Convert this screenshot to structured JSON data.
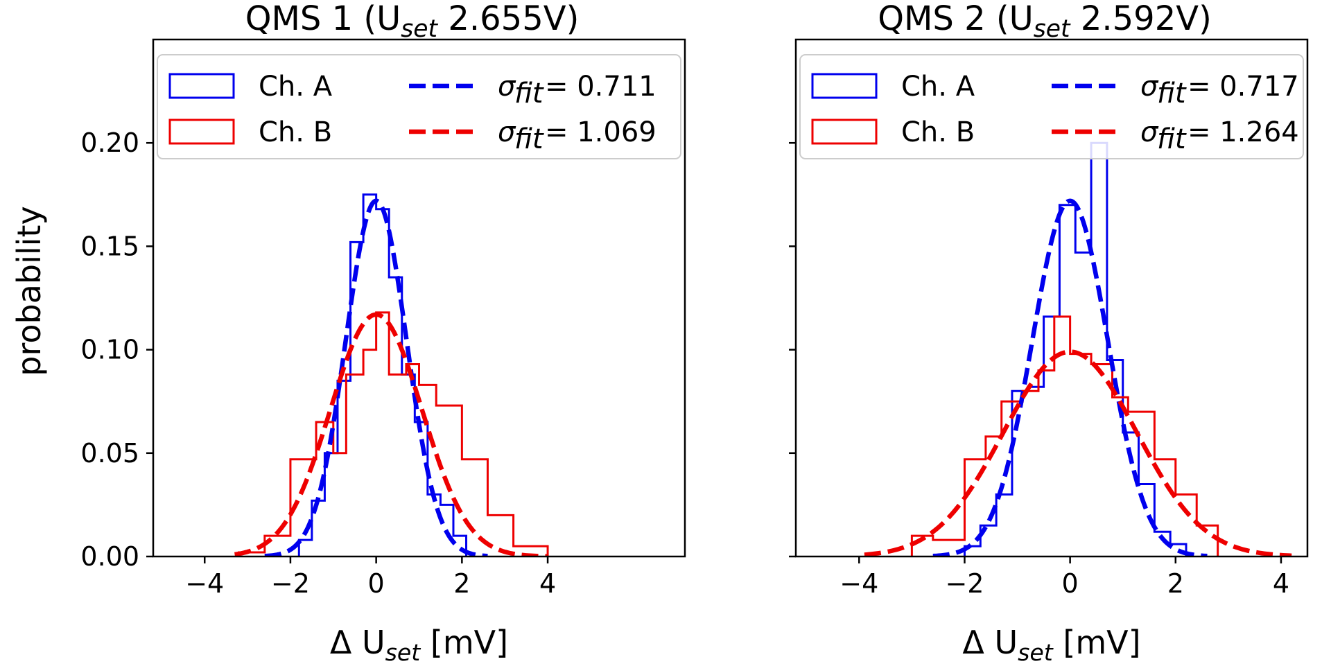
{
  "chart_data": [
    {
      "type": "histogram",
      "title": {
        "main": "QMS 1 (U",
        "sub": "set",
        "rest": " 2.655V)"
      },
      "xlabel": {
        "main": "Δ U",
        "sub": "set",
        "rest": " [mV]"
      },
      "ylabel": "probability",
      "xlim": [
        -5.2,
        7.2
      ],
      "ylim": [
        0,
        0.25
      ],
      "xticks": [
        -4,
        -2,
        0,
        2,
        4
      ],
      "xtick_labels": [
        "−4",
        "−2",
        "0",
        "2",
        "4"
      ],
      "yticks": [
        0.0,
        0.05,
        0.1,
        0.15,
        0.2
      ],
      "ytick_labels": [
        "0.00",
        "0.05",
        "0.10",
        "0.15",
        "0.20"
      ],
      "series": [
        {
          "name": "Ch. A",
          "color": "#0000ee",
          "kind": "step",
          "edges": [
            -1.8,
            -1.5,
            -1.2,
            -0.9,
            -0.6,
            -0.3,
            0.0,
            0.3,
            0.6,
            0.9,
            1.2,
            1.5,
            1.8,
            2.1
          ],
          "values": [
            0.008,
            0.027,
            0.05,
            0.085,
            0.152,
            0.175,
            0.168,
            0.135,
            0.088,
            0.065,
            0.03,
            0.025,
            0.01
          ]
        },
        {
          "name": "Ch. B",
          "color": "#ee0000",
          "kind": "step",
          "edges": [
            -3.2,
            -2.6,
            -2.0,
            -1.4,
            -1.0,
            -0.7,
            -0.3,
            0.0,
            0.3,
            0.7,
            1.0,
            1.4,
            2.0,
            2.6,
            3.2,
            4.0
          ],
          "values": [
            0.002,
            0.01,
            0.047,
            0.065,
            0.05,
            0.088,
            0.1,
            0.118,
            0.088,
            0.093,
            0.083,
            0.073,
            0.047,
            0.02,
            0.005
          ]
        },
        {
          "name": "σ_fit = 0.711",
          "color": "#0000ee",
          "kind": "gaussian",
          "mu": 0.0,
          "sigma": 0.711,
          "peak": 0.172,
          "range": [
            -2.6,
            2.6
          ]
        },
        {
          "name": "σ_fit = 1.069",
          "color": "#ee0000",
          "kind": "gaussian",
          "mu": 0.0,
          "sigma": 1.069,
          "peak": 0.117,
          "range": [
            -3.3,
            4.0
          ]
        }
      ],
      "legend": {
        "position": "top",
        "entries": [
          {
            "label": "Ch. A",
            "style": "box",
            "color": "#0000ee"
          },
          {
            "label": "Ch. B",
            "style": "box",
            "color": "#ee0000"
          },
          {
            "label": "= 0.711",
            "style": "dash",
            "color": "#0000ee"
          },
          {
            "label": "= 1.069",
            "style": "dash",
            "color": "#ee0000"
          }
        ]
      },
      "show_ylabel": true,
      "show_ytick_labels": true
    },
    {
      "type": "histogram",
      "title": {
        "main": "QMS 2 (U",
        "sub": "set",
        "rest": " 2.592V)"
      },
      "xlabel": {
        "main": "Δ U",
        "sub": "set",
        "rest": " [mV]"
      },
      "ylabel": "",
      "xlim": [
        -5.2,
        4.5
      ],
      "ylim": [
        0,
        0.25
      ],
      "xticks": [
        -4,
        -2,
        0,
        2,
        4
      ],
      "xtick_labels": [
        "−4",
        "−2",
        "0",
        "2",
        "4"
      ],
      "yticks": [
        0.0,
        0.05,
        0.1,
        0.15,
        0.2
      ],
      "ytick_labels": [
        "",
        "",
        "",
        "",
        ""
      ],
      "series": [
        {
          "name": "Ch. A",
          "color": "#0000ee",
          "kind": "step",
          "edges": [
            -2.0,
            -1.7,
            -1.4,
            -1.1,
            -0.8,
            -0.5,
            -0.2,
            0.1,
            0.4,
            0.7,
            1.0,
            1.3,
            1.6,
            1.9,
            2.2
          ],
          "values": [
            0.005,
            0.015,
            0.03,
            0.08,
            0.082,
            0.116,
            0.17,
            0.147,
            0.2,
            0.095,
            0.06,
            0.035,
            0.012,
            0.006
          ]
        },
        {
          "name": "Ch. B",
          "color": "#ee0000",
          "kind": "step",
          "edges": [
            -3.0,
            -2.6,
            -2.0,
            -1.6,
            -1.3,
            -0.9,
            -0.6,
            -0.3,
            0.0,
            0.4,
            0.8,
            1.1,
            1.6,
            2.0,
            2.4,
            2.8
          ],
          "values": [
            0.01,
            0.008,
            0.047,
            0.058,
            0.075,
            0.08,
            0.09,
            0.116,
            0.098,
            0.093,
            0.077,
            0.07,
            0.047,
            0.03,
            0.015
          ]
        },
        {
          "name": "σ_fit = 0.717",
          "color": "#0000ee",
          "kind": "gaussian",
          "mu": 0.0,
          "sigma": 0.717,
          "peak": 0.172,
          "range": [
            -2.6,
            2.6
          ]
        },
        {
          "name": "σ_fit = 1.264",
          "color": "#ee0000",
          "kind": "gaussian",
          "mu": 0.0,
          "sigma": 1.264,
          "peak": 0.099,
          "range": [
            -3.9,
            4.2
          ]
        }
      ],
      "legend": {
        "position": "top",
        "entries": [
          {
            "label": "Ch. A",
            "style": "box",
            "color": "#0000ee"
          },
          {
            "label": "Ch. B",
            "style": "box",
            "color": "#ee0000"
          },
          {
            "label": "= 0.717",
            "style": "dash",
            "color": "#0000ee"
          },
          {
            "label": "= 1.264",
            "style": "dash",
            "color": "#ee0000"
          }
        ]
      },
      "show_ylabel": false,
      "show_ytick_labels": false
    }
  ]
}
